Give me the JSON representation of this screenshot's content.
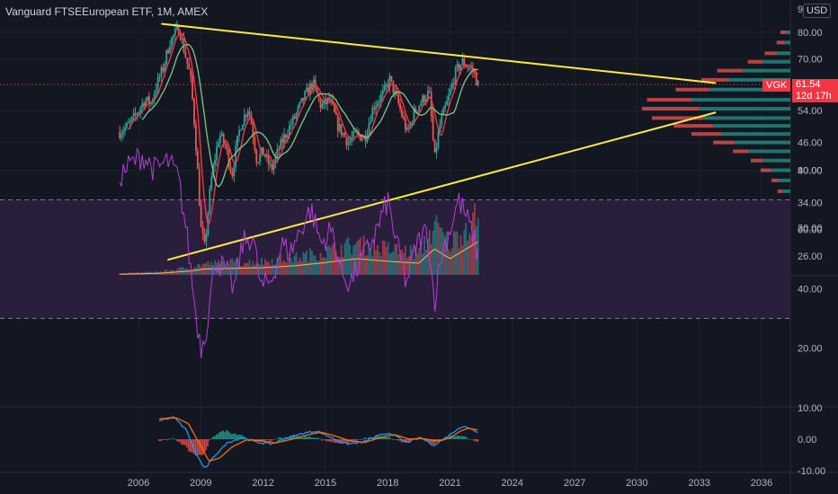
{
  "title": "Vanguard FTSEEuropean ETF, 1M, AMEX",
  "currency": "USD",
  "ticker": "VGK",
  "last_price": "61.54",
  "countdown": "12d 17h",
  "colors": {
    "background": "#131722",
    "up": "#26a69a",
    "down": "#ef5350",
    "trendline": "#ffeb3b",
    "rsi": "#b53fd6",
    "rsi_band": "#2a1e3d",
    "macd": "#2196f3",
    "signal": "#ff6d00",
    "ma_fast": "#f23645",
    "ma_slow": "#81c784"
  },
  "chart_data": {
    "type": "candlestick",
    "price_axis": {
      "scale": "log",
      "ticks": [
        "26.00",
        "30.00",
        "34.00",
        "40.00",
        "46.00",
        "54.00",
        "70.00",
        "80.00"
      ],
      "range": [
        24.5,
        92
      ]
    },
    "time_axis": {
      "ticks": [
        "2006",
        "2009",
        "2012",
        "2015",
        "2018",
        "2021",
        "2024",
        "2027",
        "2030",
        "2033",
        "2036"
      ]
    },
    "price_path": [
      [
        2005.1,
        48.5
      ],
      [
        2005.5,
        50
      ],
      [
        2005.9,
        53
      ],
      [
        2006.3,
        57
      ],
      [
        2006.6,
        56
      ],
      [
        2006.9,
        62
      ],
      [
        2007.2,
        67
      ],
      [
        2007.5,
        76
      ],
      [
        2007.8,
        80
      ],
      [
        2007.95,
        82
      ],
      [
        2008.2,
        73
      ],
      [
        2008.5,
        64
      ],
      [
        2008.8,
        43
      ],
      [
        2009.0,
        30
      ],
      [
        2009.2,
        27
      ],
      [
        2009.5,
        38
      ],
      [
        2009.9,
        48
      ],
      [
        2010.2,
        45
      ],
      [
        2010.5,
        39
      ],
      [
        2010.9,
        50
      ],
      [
        2011.3,
        55
      ],
      [
        2011.7,
        42
      ],
      [
        2012.0,
        44
      ],
      [
        2012.4,
        40
      ],
      [
        2012.8,
        45
      ],
      [
        2013.2,
        49
      ],
      [
        2013.6,
        53
      ],
      [
        2014.0,
        58
      ],
      [
        2014.4,
        62
      ],
      [
        2014.8,
        55
      ],
      [
        2015.2,
        57
      ],
      [
        2015.6,
        50
      ],
      [
        2016.1,
        46
      ],
      [
        2016.5,
        48
      ],
      [
        2016.9,
        47
      ],
      [
        2017.3,
        55
      ],
      [
        2017.8,
        59
      ],
      [
        2018.1,
        63
      ],
      [
        2018.5,
        56
      ],
      [
        2018.95,
        48
      ],
      [
        2019.3,
        54
      ],
      [
        2019.8,
        58
      ],
      [
        2020.0,
        59
      ],
      [
        2020.25,
        42
      ],
      [
        2020.5,
        50
      ],
      [
        2020.9,
        57
      ],
      [
        2021.3,
        66
      ],
      [
        2021.6,
        69
      ],
      [
        2021.9,
        67
      ],
      [
        2022.1,
        66
      ],
      [
        2022.35,
        61.5
      ]
    ],
    "volume_path": [
      [
        2005.1,
        0.02
      ],
      [
        2007.0,
        0.05
      ],
      [
        2008.5,
        0.12
      ],
      [
        2009.2,
        0.18
      ],
      [
        2010.5,
        0.2
      ],
      [
        2012.0,
        0.22
      ],
      [
        2013.5,
        0.28
      ],
      [
        2015.0,
        0.38
      ],
      [
        2016.5,
        0.5
      ],
      [
        2018.0,
        0.42
      ],
      [
        2019.5,
        0.36
      ],
      [
        2020.25,
        0.8
      ],
      [
        2021.0,
        0.5
      ],
      [
        2022.3,
        1.0
      ]
    ],
    "trendlines": [
      {
        "from": [
          2007.1,
          83.5
        ],
        "to": [
          2033.8,
          62.0
        ]
      },
      {
        "from": [
          2007.4,
          25.5
        ],
        "to": [
          2033.8,
          53.5
        ]
      }
    ],
    "volume_profile": [
      [
        80.0,
        0.06,
        0.04
      ],
      [
        76.0,
        0.08,
        0.06
      ],
      [
        72.0,
        0.12,
        0.14
      ],
      [
        69.0,
        0.15,
        0.28
      ],
      [
        66.0,
        0.26,
        0.48
      ],
      [
        63.0,
        0.28,
        0.62
      ],
      [
        60.0,
        0.34,
        0.82
      ],
      [
        57.0,
        0.45,
        1.0
      ],
      [
        54.5,
        0.58,
        0.92
      ],
      [
        52.0,
        0.52,
        0.88
      ],
      [
        50.0,
        0.4,
        0.78
      ],
      [
        48.0,
        0.3,
        0.7
      ],
      [
        46.0,
        0.22,
        0.56
      ],
      [
        44.0,
        0.16,
        0.42
      ],
      [
        42.0,
        0.12,
        0.28
      ],
      [
        40.0,
        0.1,
        0.2
      ],
      [
        38.0,
        0.07,
        0.12
      ],
      [
        36.0,
        0.05,
        0.08
      ]
    ],
    "rsi": {
      "ticks": [
        "20.00",
        "40.00",
        "60.00",
        "80.00"
      ],
      "range": [
        12,
        92
      ],
      "levels": [
        70,
        30
      ],
      "path": [
        [
          2005.1,
          78
        ],
        [
          2005.6,
          82
        ],
        [
          2006.2,
          85
        ],
        [
          2006.8,
          80
        ],
        [
          2007.4,
          83
        ],
        [
          2007.9,
          78
        ],
        [
          2008.3,
          60
        ],
        [
          2008.7,
          35
        ],
        [
          2009.0,
          20
        ],
        [
          2009.3,
          28
        ],
        [
          2009.7,
          50
        ],
        [
          2010.2,
          46
        ],
        [
          2010.6,
          40
        ],
        [
          2011.0,
          55
        ],
        [
          2011.5,
          58
        ],
        [
          2011.9,
          40
        ],
        [
          2012.4,
          43
        ],
        [
          2012.9,
          55
        ],
        [
          2013.3,
          52
        ],
        [
          2013.8,
          60
        ],
        [
          2014.3,
          67
        ],
        [
          2014.8,
          55
        ],
        [
          2015.3,
          60
        ],
        [
          2015.8,
          45
        ],
        [
          2016.2,
          42
        ],
        [
          2016.6,
          48
        ],
        [
          2017.1,
          54
        ],
        [
          2017.6,
          62
        ],
        [
          2018.0,
          70
        ],
        [
          2018.4,
          56
        ],
        [
          2018.9,
          42
        ],
        [
          2019.4,
          55
        ],
        [
          2019.9,
          60
        ],
        [
          2020.25,
          36
        ],
        [
          2020.6,
          52
        ],
        [
          2021.0,
          60
        ],
        [
          2021.4,
          70
        ],
        [
          2021.8,
          64
        ],
        [
          2022.1,
          58
        ],
        [
          2022.35,
          51
        ]
      ]
    },
    "macd": {
      "ticks": [
        "-10.00",
        "0.00",
        "10.00"
      ],
      "range": [
        -11,
        11
      ],
      "macd_path": [
        [
          2007.0,
          6
        ],
        [
          2007.7,
          7
        ],
        [
          2008.3,
          3
        ],
        [
          2008.8,
          -5
        ],
        [
          2009.2,
          -9.5
        ],
        [
          2009.7,
          -5
        ],
        [
          2010.3,
          -1
        ],
        [
          2011.0,
          0.5
        ],
        [
          2011.7,
          -1
        ],
        [
          2012.4,
          -1.5
        ],
        [
          2013.2,
          0.5
        ],
        [
          2014.0,
          2
        ],
        [
          2014.6,
          2.6
        ],
        [
          2015.3,
          0.5
        ],
        [
          2016.0,
          -1.5
        ],
        [
          2016.8,
          -1
        ],
        [
          2017.5,
          1
        ],
        [
          2018.1,
          2
        ],
        [
          2018.9,
          -1
        ],
        [
          2019.6,
          0.5
        ],
        [
          2020.25,
          -2
        ],
        [
          2020.9,
          1
        ],
        [
          2021.4,
          3.5
        ],
        [
          2021.8,
          4
        ],
        [
          2022.35,
          2.3
        ]
      ],
      "signal_path": [
        [
          2007.0,
          6.5
        ],
        [
          2007.8,
          6.8
        ],
        [
          2008.4,
          5
        ],
        [
          2008.9,
          -1
        ],
        [
          2009.4,
          -7
        ],
        [
          2009.9,
          -6
        ],
        [
          2010.5,
          -2.5
        ],
        [
          2011.2,
          -0.2
        ],
        [
          2011.9,
          -0.5
        ],
        [
          2012.6,
          -1.2
        ],
        [
          2013.4,
          0
        ],
        [
          2014.2,
          1.5
        ],
        [
          2014.8,
          2.2
        ],
        [
          2015.5,
          1
        ],
        [
          2016.2,
          -0.6
        ],
        [
          2016.9,
          -1
        ],
        [
          2017.6,
          0.4
        ],
        [
          2018.3,
          1.5
        ],
        [
          2019.0,
          0.1
        ],
        [
          2019.7,
          0.2
        ],
        [
          2020.4,
          -0.6
        ],
        [
          2021.0,
          0.4
        ],
        [
          2021.5,
          2.6
        ],
        [
          2021.9,
          3.5
        ],
        [
          2022.35,
          2.9
        ]
      ]
    }
  }
}
